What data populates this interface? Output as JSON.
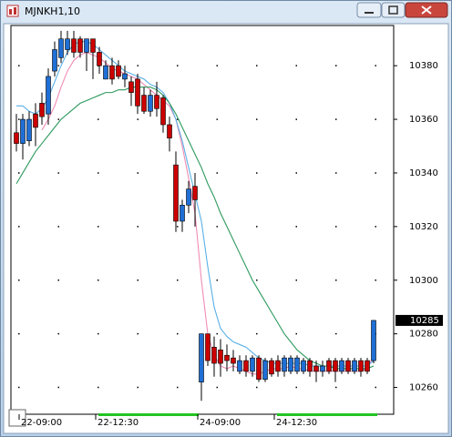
{
  "chart_data": {
    "type": "candlestick",
    "title": "MJNKH1,10",
    "categories": [
      null,
      "22-09:00",
      null,
      null,
      null,
      null,
      null,
      null,
      null,
      null,
      null,
      null,
      null,
      "22-12:30",
      null,
      null,
      null,
      null,
      null,
      null,
      null,
      null,
      null,
      null,
      null,
      null,
      null,
      null,
      null,
      "24-09:00",
      null,
      null,
      null,
      null,
      null,
      null,
      null,
      null,
      null,
      null,
      null,
      "24-12:30",
      null,
      null,
      null,
      null,
      null,
      null,
      null,
      null,
      null,
      null,
      null,
      null,
      null,
      null,
      null
    ],
    "open": [
      10355,
      10351,
      10352,
      10362,
      10366,
      10362,
      10378,
      10383,
      10386,
      10390,
      10390,
      10385,
      10390,
      10385,
      10375,
      10380,
      10380,
      10375,
      10374,
      10375,
      10369,
      10363,
      10369,
      10368,
      10358,
      10343,
      10322,
      10328,
      10335,
      10262,
      10280,
      10275,
      10274,
      10272,
      10271,
      10266,
      10270,
      10266,
      10271,
      10263,
      10270,
      10270,
      10266,
      10266,
      10266,
      10266,
      10270,
      10268,
      10266,
      10270,
      10270,
      10266,
      10270,
      10266,
      10270,
      10270,
      10270
    ],
    "high": [
      10362,
      10362,
      10363,
      10366,
      10370,
      10379,
      10389,
      10393,
      10393,
      10393,
      10391,
      10390,
      10390,
      10387,
      10382,
      10383,
      10382,
      10380,
      10376,
      10377,
      10372,
      10371,
      10374,
      10369,
      10361,
      10348,
      10330,
      10337,
      10340,
      10280,
      10280,
      10279,
      10278,
      10276,
      10274,
      10272,
      10272,
      10272,
      10272,
      10271,
      10271,
      10272,
      10272,
      10272,
      10272,
      10271,
      10271,
      10270,
      10270,
      10271,
      10271,
      10271,
      10271,
      10271,
      10271,
      10271,
      10285
    ],
    "low": [
      10348,
      10345,
      10350,
      10350,
      10358,
      10358,
      10376,
      10381,
      10384,
      10383,
      10383,
      10378,
      10375,
      10377,
      10375,
      10373,
      10375,
      10372,
      10365,
      10362,
      10362,
      10361,
      10361,
      10355,
      10348,
      10318,
      10318,
      10325,
      10320,
      10255,
      10268,
      10264,
      10264,
      10266,
      10266,
      10265,
      10264,
      10264,
      10262,
      10262,
      10264,
      10264,
      10264,
      10265,
      10265,
      10265,
      10264,
      10262,
      10264,
      10265,
      10262,
      10265,
      10265,
      10265,
      10264,
      10265,
      10269
    ],
    "close": [
      10351,
      10360,
      10360,
      10357,
      10361,
      10376,
      10386,
      10390,
      10390,
      10385,
      10385,
      10390,
      10385,
      10380,
      10380,
      10375,
      10376,
      10377,
      10370,
      10365,
      10363,
      10369,
      10364,
      10358,
      10353,
      10322,
      10328,
      10334,
      10330,
      10280,
      10270,
      10269,
      10269,
      10270,
      10269,
      10270,
      10266,
      10271,
      10263,
      10270,
      10265,
      10266,
      10271,
      10271,
      10271,
      10270,
      10266,
      10266,
      10268,
      10266,
      10266,
      10270,
      10266,
      10270,
      10266,
      10266,
      10285
    ],
    "up_color": "#1f6fd6",
    "down_color": "#cc0000",
    "series": [
      {
        "color": "#f08cb4",
        "values": [
          null,
          null,
          null,
          null,
          10356,
          10360,
          10365,
          10372,
          10378,
          10382,
          10384,
          10385,
          10384,
          10383,
          10381,
          10379,
          10378,
          10377,
          10376,
          10375,
          10373,
          10371,
          10369,
          10367,
          10365,
          10360,
          10350,
          10338,
          10325,
          10300,
          10280,
          10272,
          10268,
          10267,
          10268,
          10267,
          10266,
          10265,
          10265,
          10266,
          10267,
          10267,
          10267,
          10268,
          10267,
          10267,
          10266,
          10266,
          10266,
          10266,
          10266,
          10266,
          10266,
          10266,
          10266,
          10267,
          10272
        ]
      },
      {
        "color": "#5ab0e6",
        "values": [
          10365,
          10365,
          10363,
          10362,
          10364,
          10368,
          10374,
          10380,
          10385,
          10388,
          10389,
          10389,
          10388,
          10386,
          10384,
          10382,
          10380,
          10378,
          10377,
          10376,
          10375,
          10373,
          10372,
          10370,
          10366,
          10360,
          10352,
          10342,
          10332,
          10322,
          10305,
          10290,
          10282,
          10279,
          10277,
          10276,
          10275,
          10273,
          10271,
          10270,
          10269,
          10269,
          10269,
          10269,
          10269,
          10269,
          10268,
          10268,
          10268,
          10268,
          10268,
          10268,
          10268,
          10268,
          10268,
          10268,
          10270
        ]
      },
      {
        "color": "#2e9a5e",
        "values": [
          10336,
          10340,
          10344,
          10348,
          10351,
          10354,
          10357,
          10360,
          10362,
          10364,
          10366,
          10367,
          10368,
          10369,
          10370,
          10370,
          10371,
          10371,
          10372,
          10372,
          10372,
          10372,
          10371,
          10369,
          10366,
          10362,
          10357,
          10352,
          10347,
          10342,
          10336,
          10331,
          10325,
          10320,
          10315,
          10310,
          10305,
          10300,
          10296,
          10292,
          10288,
          10284,
          10280,
          10277,
          10274,
          10272,
          10270,
          10269,
          10268,
          10268,
          10267,
          10267,
          10267,
          10267,
          10267,
          10267,
          10268
        ]
      }
    ],
    "ylim": [
      10250,
      10395
    ],
    "yticks": [
      10260,
      10280,
      10300,
      10320,
      10340,
      10360,
      10380
    ],
    "grid": true
  }
}
